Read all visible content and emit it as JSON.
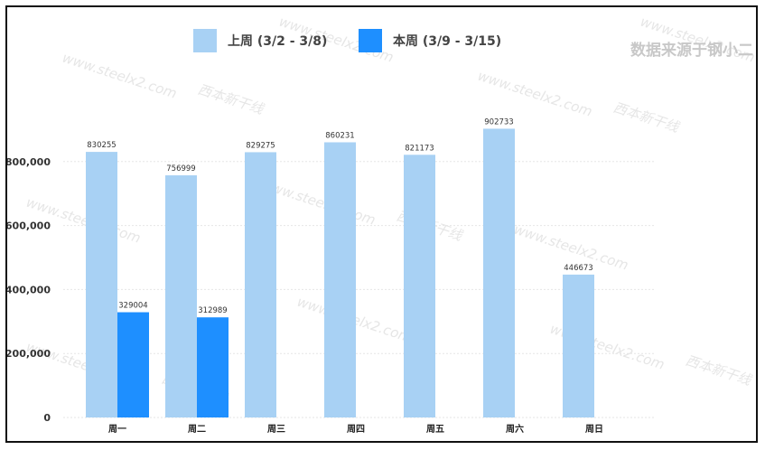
{
  "source_note": "数据来源于钢小二",
  "watermark": {
    "text": "www.steelx2.com",
    "brand": "西本新干线"
  },
  "colors": {
    "series0": "#a8d1f4",
    "series1": "#1e8fff",
    "axis_text": "#333333",
    "grid": "#e6e6e6"
  },
  "chart_data": {
    "type": "bar",
    "title": "",
    "xlabel": "",
    "ylabel": "",
    "categories": [
      "周一",
      "周二",
      "周三",
      "周四",
      "周五",
      "周六",
      "周日"
    ],
    "series": [
      {
        "name": "上周 (3/2 - 3/8)",
        "values": [
          830255,
          756999,
          829275,
          860231,
          821173,
          902733,
          446673
        ]
      },
      {
        "name": "本周 (3/9 - 3/15)",
        "values": [
          329004,
          312989,
          null,
          null,
          null,
          null,
          null
        ]
      }
    ],
    "ylim": [
      0,
      1000000
    ],
    "yticks": [
      0,
      200000,
      400000,
      600000,
      800000
    ],
    "ytick_labels": [
      "0",
      "200,000",
      "400,000",
      "600,000",
      "800,000"
    ],
    "grid": true,
    "legend_position": "top-center",
    "data_labels": true
  }
}
